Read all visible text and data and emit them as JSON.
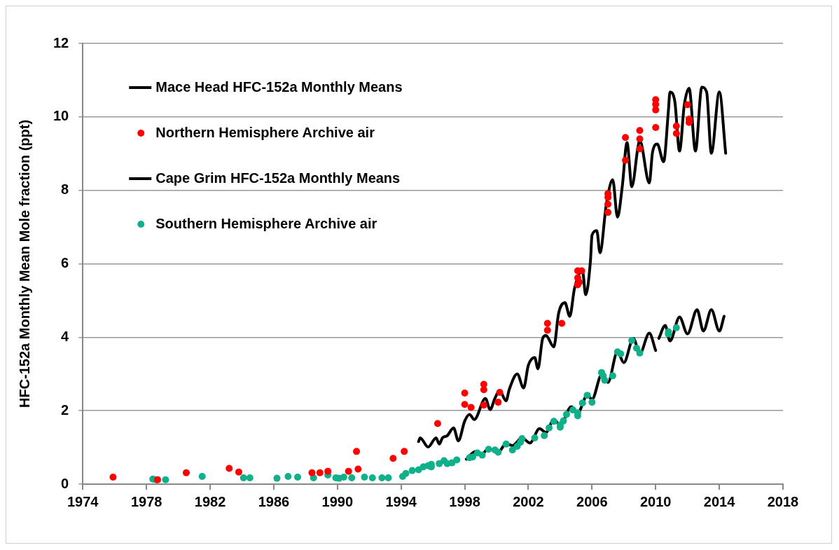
{
  "chart_data": {
    "type": "line",
    "ylabel": "HFC-152a Monthly Mean Mole fraction (ppt)",
    "xlim": [
      1974,
      2018
    ],
    "xticks": [
      1974,
      1978,
      1982,
      1986,
      1990,
      1994,
      1998,
      2002,
      2006,
      2010,
      2014,
      2018
    ],
    "ylim": [
      0,
      12
    ],
    "yticks": [
      0,
      2,
      4,
      6,
      8,
      10,
      12
    ],
    "grid": "y",
    "legend": "top left",
    "series": [
      {
        "name": "Mace Head HFC-152a Monthly Means",
        "type": "line",
        "marker": "none",
        "line_style": "solid",
        "color": "#000000",
        "x": [
          1995.1,
          1995.2,
          1995.7,
          1996.2,
          1996.4,
          1996.6,
          1996.9,
          1997.3,
          1997.6,
          1998.0,
          1998.3,
          1998.6,
          1999.3,
          1999.6,
          1999.9,
          2000.2,
          2000.6,
          2000.8,
          2001.3,
          2001.7,
          2002.0,
          2002.4,
          2002.6,
          2002.9,
          2003.1,
          2003.6,
          2003.9,
          2004.3,
          2004.6,
          2004.9,
          2005.4,
          2005.6,
          2005.9,
          2006.0,
          2006.3,
          2006.5,
          2006.9,
          2007.3,
          2007.6,
          2007.9,
          2008.2,
          2008.5,
          2008.9,
          2009.0,
          2009.6,
          2009.8,
          2010.1,
          2010.5,
          2010.8,
          2010.9,
          2011.2,
          2011.5,
          2011.8,
          2012.1,
          2012.5,
          2012.9,
          2013.2,
          2013.5,
          2014.0,
          2014.4
        ],
        "values": [
          1.16,
          1.26,
          1.01,
          1.26,
          1.09,
          1.26,
          1.32,
          1.53,
          1.18,
          1.72,
          1.9,
          1.76,
          2.33,
          2.03,
          2.34,
          2.54,
          2.27,
          2.58,
          3.0,
          2.62,
          3.24,
          3.45,
          3.14,
          3.97,
          4.05,
          3.74,
          4.65,
          4.94,
          4.57,
          5.33,
          5.81,
          5.16,
          6.07,
          6.78,
          6.9,
          6.3,
          7.62,
          8.29,
          7.27,
          8.1,
          9.3,
          8.1,
          9.21,
          9.36,
          8.2,
          9.03,
          9.26,
          8.78,
          10.17,
          10.68,
          10.43,
          9.07,
          10.33,
          10.78,
          9.07,
          10.81,
          10.68,
          9.01,
          10.68,
          9.01
        ]
      },
      {
        "name": "Northern Hemisphere Archive air",
        "type": "scatter",
        "marker": "circle",
        "color": "#ff0000",
        "x": [
          1975.9,
          1978.7,
          1980.5,
          1983.2,
          1983.8,
          1988.4,
          1988.9,
          1989.4,
          1990.7,
          1991.2,
          1991.3,
          1993.5,
          1994.2,
          1996.3,
          1998.0,
          1998.0,
          1998.4,
          1999.2,
          1999.2,
          1999.2,
          2000.1,
          2000.2,
          2003.2,
          2003.2,
          2004.1,
          2005.1,
          2005.35,
          2005.1,
          2005.1,
          2005.2,
          2007.0,
          2007.0,
          2007.0,
          2007.0,
          2008.1,
          2008.1,
          2009.0,
          2009.0,
          2009.0,
          2010.0,
          2010.0,
          2010.0,
          2010.0,
          2011.3,
          2011.3,
          2012.0,
          2012.1,
          2012.1
        ],
        "values": [
          0.19,
          0.12,
          0.31,
          0.43,
          0.33,
          0.31,
          0.31,
          0.35,
          0.35,
          0.89,
          0.41,
          0.7,
          0.89,
          1.65,
          2.48,
          2.17,
          2.09,
          2.72,
          2.57,
          2.15,
          2.23,
          2.5,
          4.38,
          4.19,
          4.38,
          5.81,
          5.81,
          5.62,
          5.43,
          5.5,
          7.91,
          7.81,
          7.62,
          7.4,
          9.44,
          8.82,
          9.63,
          9.4,
          9.13,
          10.47,
          10.34,
          10.19,
          9.71,
          9.75,
          9.55,
          10.33,
          9.94,
          9.85
        ]
      },
      {
        "name": "Cape Grim HFC-152a Monthly Means",
        "type": "line",
        "marker": "none",
        "line_style": "solid",
        "color": "#000000",
        "x": [
          1998.1,
          1998.7,
          1999.1,
          1999.5,
          2000.1,
          2000.6,
          2001.0,
          2001.6,
          2002.1,
          2002.7,
          2003.1,
          2003.6,
          2004.0,
          2004.7,
          2005.1,
          2005.7,
          2006.0,
          2006.6,
          2007.0,
          2007.6,
          2008.0,
          2008.6,
          2009.0,
          2009.6,
          2010.0,
          2010.1,
          2010.2,
          2010.6,
          2010.9,
          2011.5,
          2012.0,
          2012.6,
          2013.0,
          2013.5,
          2014.0,
          2014.3
        ],
        "values": [
          0.68,
          0.89,
          0.83,
          0.97,
          0.87,
          1.1,
          1.05,
          1.26,
          1.12,
          1.51,
          1.41,
          1.76,
          1.61,
          2.11,
          1.94,
          2.42,
          2.31,
          2.97,
          2.77,
          3.6,
          3.31,
          3.97,
          3.55,
          4.11,
          3.64,
          null,
          3.97,
          4.32,
          3.9,
          4.55,
          4.09,
          4.75,
          4.17,
          4.75,
          4.17,
          4.57
        ]
      },
      {
        "name": "Southern Hemisphere Archive air",
        "type": "scatter",
        "marker": "circle",
        "color": "#10b08a",
        "x": [
          1978.4,
          1978.6,
          1979.2,
          1981.5,
          1984.1,
          1984.5,
          1986.2,
          1986.9,
          1987.5,
          1988.5,
          1989.4,
          1989.9,
          1990.1,
          1990.4,
          1990.9,
          1991.7,
          1992.2,
          1992.8,
          1993.2,
          1994.1,
          1994.3,
          1994.7,
          1995.1,
          1995.4,
          1995.7,
          1995.9,
          1995.9,
          1996.4,
          1996.7,
          1996.9,
          1997.2,
          1997.5,
          1998.3,
          1998.5,
          1998.8,
          1999.1,
          1999.5,
          1999.9,
          2000.1,
          2000.6,
          2001.0,
          2001.3,
          2001.5,
          2001.6,
          2002.4,
          2003.0,
          2003.3,
          2003.6,
          2004.0,
          2004.0,
          2004.2,
          2004.4,
          2004.8,
          2005.1,
          2005.1,
          2005.4,
          2005.7,
          2006.0,
          2006.6,
          2006.7,
          2006.8,
          2007.3,
          2007.6,
          2007.8,
          2008.5,
          2008.8,
          2009.0,
          2010.8,
          2010.8,
          2011.3
        ],
        "values": [
          0.14,
          0.12,
          0.12,
          0.21,
          0.17,
          0.17,
          0.16,
          0.21,
          0.19,
          0.17,
          0.25,
          0.17,
          0.16,
          0.19,
          0.17,
          0.19,
          0.17,
          0.17,
          0.17,
          0.21,
          0.29,
          0.37,
          0.39,
          0.47,
          0.5,
          0.54,
          0.47,
          0.56,
          0.64,
          0.56,
          0.58,
          0.66,
          0.72,
          0.74,
          0.85,
          0.79,
          0.95,
          0.93,
          0.87,
          1.09,
          0.93,
          1.03,
          1.14,
          1.24,
          1.26,
          1.32,
          1.53,
          1.71,
          1.61,
          1.55,
          1.72,
          1.9,
          2.02,
          1.94,
          1.86,
          2.21,
          2.42,
          2.23,
          3.04,
          2.95,
          2.83,
          2.95,
          3.6,
          3.55,
          3.91,
          3.7,
          3.57,
          4.15,
          4.09,
          4.26
        ]
      }
    ]
  }
}
